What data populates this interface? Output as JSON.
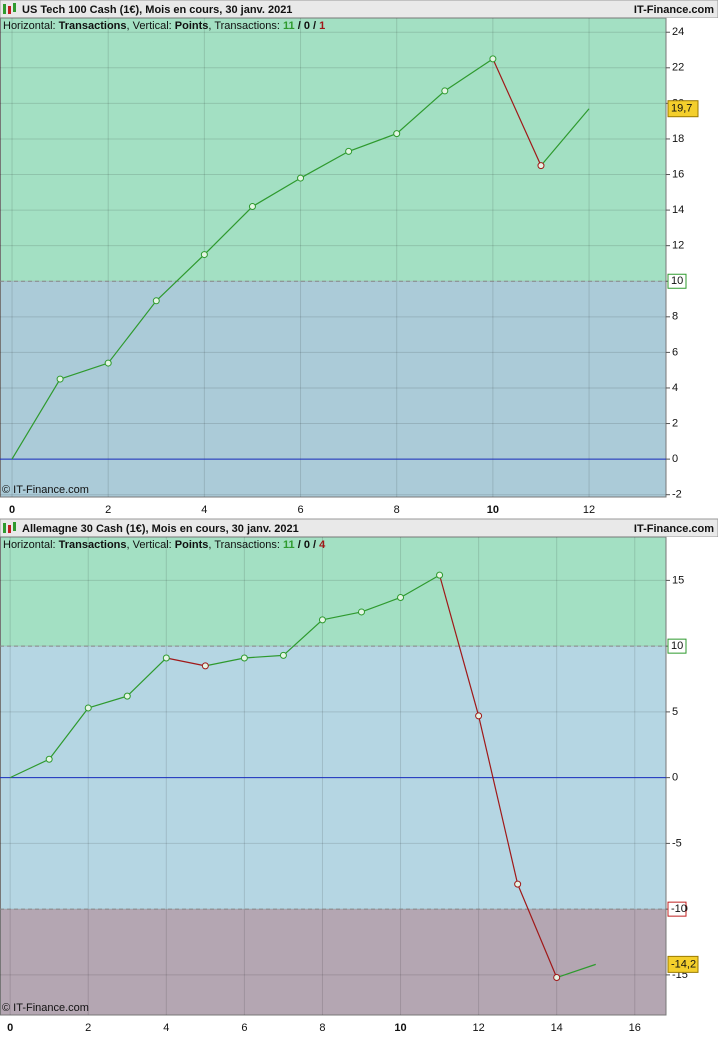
{
  "chart_data": [
    {
      "type": "line",
      "title": "US Tech 100 Cash (1€), Mois en cours, 30 janv. 2021",
      "brand": "IT-Finance.com",
      "subtitle_parts": [
        "Horizontal: ",
        "Transactions",
        ", Vertical: ",
        "Points",
        ", Transactions: ",
        "11",
        " / ",
        "0",
        " / ",
        "1"
      ],
      "watermark": "© IT-Finance.com",
      "x": [
        0,
        1,
        2,
        3,
        4,
        5,
        6,
        7,
        8,
        9,
        10,
        11,
        12
      ],
      "values": [
        0,
        4.5,
        5.4,
        8.9,
        11.5,
        14.2,
        15.8,
        17.3,
        18.3,
        20.7,
        22.5,
        16.5,
        19.7
      ],
      "last_label": "19,7",
      "xlim": [
        -0.25,
        13.6
      ],
      "ylim": [
        -2.13,
        24.8
      ],
      "xticks": [
        0,
        2,
        4,
        6,
        8,
        10,
        12
      ],
      "yticks": [
        -2,
        0,
        2,
        4,
        6,
        8,
        10,
        12,
        14,
        16,
        18,
        20,
        22,
        24
      ],
      "thresholds": [
        10
      ],
      "zone_colors": [
        "#a3e0c3",
        "#abcbd8"
      ],
      "up_color": "#2e9a2e",
      "down_color": "#a01818",
      "zero_color": "#1a2fc0",
      "grid": true
    },
    {
      "type": "line",
      "title": "Allemagne 30 Cash (1€), Mois en cours, 30 janv. 2021",
      "brand": "IT-Finance.com",
      "subtitle_parts": [
        "Horizontal: ",
        "Transactions",
        ", Vertical: ",
        "Points",
        ", Transactions: ",
        "11",
        " / ",
        "0",
        " / ",
        "4"
      ],
      "watermark": "© IT-Finance.com",
      "x": [
        0,
        1,
        2,
        3,
        4,
        5,
        6,
        7,
        8,
        9,
        10,
        11,
        12,
        13,
        14,
        15
      ],
      "values": [
        0,
        1.4,
        5.3,
        6.2,
        9.1,
        8.5,
        9.1,
        9.3,
        12.0,
        12.6,
        13.7,
        15.4,
        4.7,
        -8.1,
        -15.2,
        -14.2
      ],
      "last_label": "-14,2",
      "xlim": [
        -0.26,
        16.8
      ],
      "ylim": [
        -18.05,
        18.3
      ],
      "xticks": [
        0,
        2,
        4,
        6,
        8,
        10,
        12,
        14,
        16
      ],
      "yticks": [
        -15,
        -10,
        -5,
        0,
        5,
        10,
        15
      ],
      "thresholds": [
        10,
        -10
      ],
      "zone_colors": [
        "#a3e0c3",
        "#b5d6e3",
        "#b4a6b2"
      ],
      "up_color": "#2e9a2e",
      "down_color": "#a01818",
      "zero_color": "#1a2fc0",
      "grid": true
    }
  ]
}
